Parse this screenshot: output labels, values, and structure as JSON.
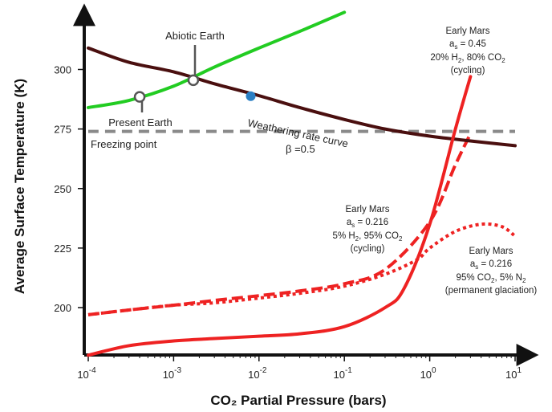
{
  "chart_data": {
    "type": "line",
    "xlabel": "CO₂ Partial Pressure (bars)",
    "ylabel": "Average Surface Temperature (K)",
    "xscale": "log",
    "xlim": [
      0.0001,
      10
    ],
    "ylim": [
      180,
      325
    ],
    "x_ticks": [
      {
        "value": 0.0001,
        "base": "10",
        "exp": "-4"
      },
      {
        "value": 0.001,
        "base": "10",
        "exp": "-3"
      },
      {
        "value": 0.01,
        "base": "10",
        "exp": "-2"
      },
      {
        "value": 0.1,
        "base": "10",
        "exp": "-1"
      },
      {
        "value": 1,
        "base": "10",
        "exp": "0"
      },
      {
        "value": 10,
        "base": "10",
        "exp": "1"
      }
    ],
    "y_ticks": [
      "200",
      "225",
      "250",
      "275",
      "300"
    ],
    "grid": false,
    "series": [
      {
        "id": "earth",
        "style": "solid",
        "color": "#22cc22",
        "x": [
          0.0001,
          0.0003,
          0.001,
          0.003,
          0.01,
          0.03,
          0.1
        ],
        "y": [
          284,
          287,
          293,
          301,
          309,
          316,
          324
        ]
      },
      {
        "id": "weathering",
        "style": "solid",
        "color": "#4a0f0f",
        "x": [
          0.0001,
          0.0003,
          0.001,
          0.003,
          0.01,
          0.03,
          0.1,
          0.3,
          1,
          3,
          10
        ],
        "y": [
          309,
          303,
          299,
          294,
          289,
          284,
          279,
          275,
          272,
          270,
          268
        ]
      },
      {
        "id": "mars-h2-20",
        "style": "solid",
        "color": "#ee2222",
        "x": [
          0.0001,
          0.0003,
          0.001,
          0.003,
          0.01,
          0.03,
          0.1,
          0.3,
          0.5,
          1,
          2,
          3
        ],
        "y": [
          180,
          184,
          186,
          187,
          188,
          189,
          192,
          200,
          208,
          235,
          275,
          297
        ]
      },
      {
        "id": "mars-h2-5",
        "style": "dashed",
        "color": "#ee2222",
        "x": [
          0.0001,
          0.0003,
          0.001,
          0.003,
          0.01,
          0.03,
          0.1,
          0.3,
          1,
          2,
          3
        ],
        "y": [
          197,
          199,
          201,
          203,
          205,
          207,
          210,
          216,
          236,
          260,
          273
        ]
      },
      {
        "id": "mars-n2",
        "style": "dotted",
        "color": "#ee2222",
        "x": [
          0.0001,
          0.0003,
          0.001,
          0.003,
          0.01,
          0.03,
          0.1,
          0.3,
          0.7,
          1,
          2,
          4,
          7,
          10
        ],
        "y": [
          197,
          199,
          201,
          202,
          204,
          206,
          209,
          214,
          220,
          225,
          232,
          235,
          234,
          230
        ]
      },
      {
        "id": "freezing",
        "style": "dashed-grey",
        "color": "#8a8a8a",
        "x": [
          0.0001,
          10
        ],
        "y": [
          274,
          274
        ]
      }
    ],
    "points": [
      {
        "id": "present-earth",
        "x": 0.0004,
        "y": 288.5,
        "style": "open"
      },
      {
        "id": "abiotic-earth",
        "x": 0.0017,
        "y": 295.5,
        "style": "open"
      },
      {
        "id": "blue-point",
        "x": 0.008,
        "y": 288.8,
        "style": "filled",
        "color": "#2b7fc4"
      }
    ],
    "annotations": {
      "abiotic_earth": "Abiotic Earth",
      "present_earth": "Present Earth",
      "freezing_point": "Freezing point",
      "weathering_1": "Weathering rate curve",
      "weathering_2": "β =0.5",
      "mars1": {
        "l1": "Early Mars",
        "l2a": "a",
        "l2sub": "s",
        "l2b": " = 0.45",
        "l3a": "20% H",
        "l3sub1": "2",
        "l3b": ", 80% CO",
        "l3sub2": "2",
        "l4": "(cycling)"
      },
      "mars2": {
        "l1": "Early Mars",
        "l2a": "a",
        "l2sub": "s",
        "l2b": " = 0.216",
        "l3a": "5% H",
        "l3sub1": "2",
        "l3b": ", 95% CO",
        "l3sub2": "2",
        "l4": "(cycling)"
      },
      "mars3": {
        "l1": "Early Mars",
        "l2a": "a",
        "l2sub": "s",
        "l2b": " = 0.216",
        "l3a": "95% CO",
        "l3sub1": "2",
        "l3b": ", 5% N",
        "l3sub2": "2",
        "l4": "(permanent glaciation)"
      }
    }
  }
}
